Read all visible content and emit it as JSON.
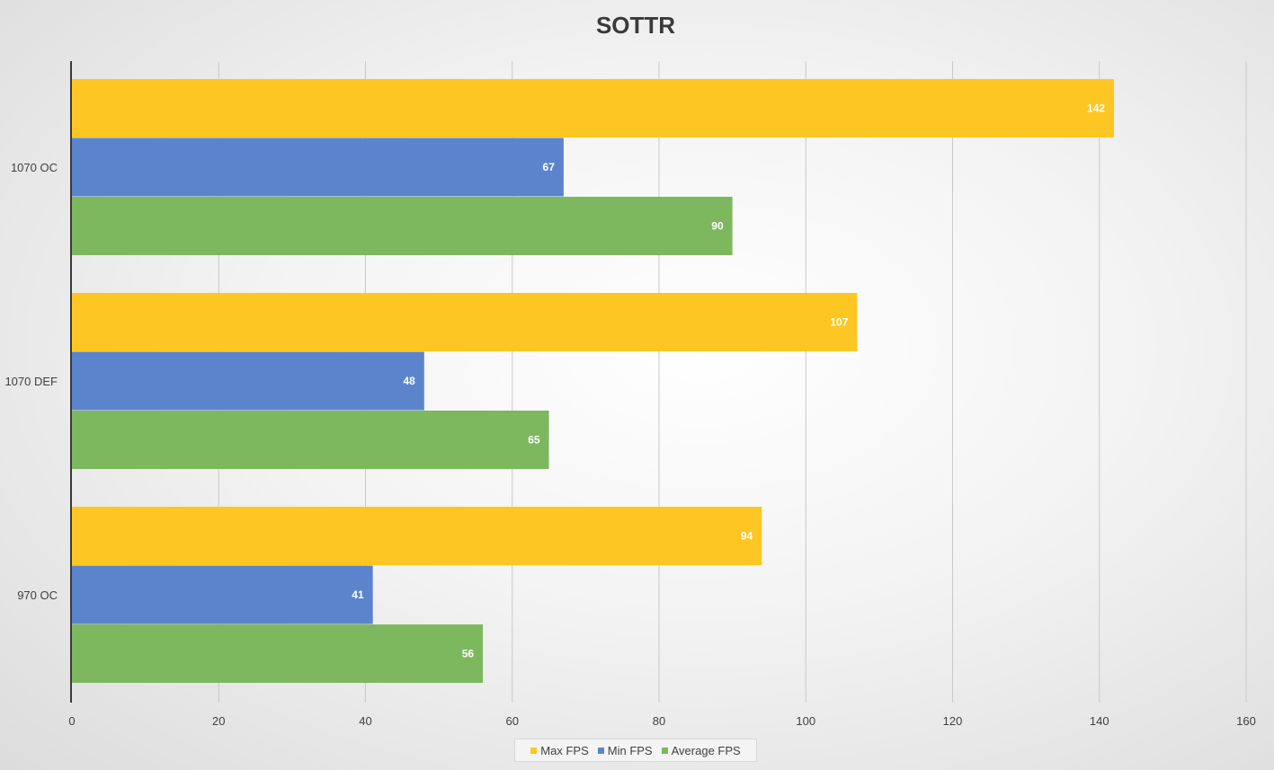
{
  "chart_data": {
    "type": "bar",
    "orientation": "horizontal",
    "title": "SOTTR",
    "categories": [
      "1070  OC",
      "1070  DEF",
      "970  OC"
    ],
    "series": [
      {
        "name": "Max FPS",
        "color": "#fdc623",
        "values": [
          142,
          107,
          94
        ]
      },
      {
        "name": "Min FPS",
        "color": "#5b84cc",
        "values": [
          67,
          48,
          41
        ]
      },
      {
        "name": "Average FPS",
        "color": "#7db85e",
        "values": [
          90,
          65,
          56
        ]
      }
    ],
    "xlim": [
      0,
      160
    ],
    "xticks": [
      0,
      20,
      40,
      60,
      80,
      100,
      120,
      140,
      160
    ],
    "grid": "vertical",
    "data_labels": true,
    "legend_position": "bottom"
  }
}
